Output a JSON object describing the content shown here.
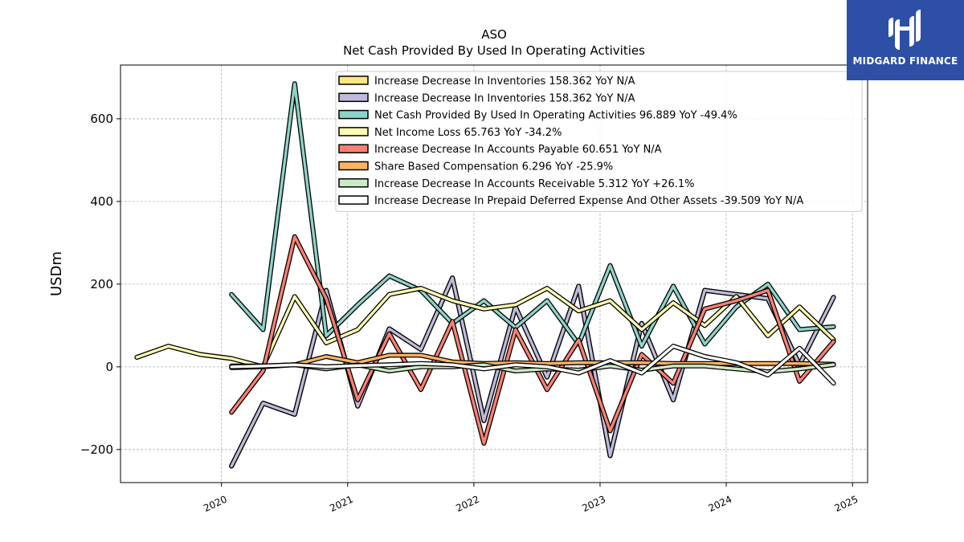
{
  "brand": {
    "name": "MIDGARD FINANCE",
    "bg_color": "#2d4fa6"
  },
  "chart_data": {
    "type": "line",
    "title": "ASO",
    "subtitle": "Net Cash Provided By Used In Operating Activities",
    "xlabel": "",
    "ylabel": "USDm",
    "xlim": [
      2019.2,
      2025.12
    ],
    "ylim": [
      -280,
      730
    ],
    "x_ticks": [
      2020,
      2021,
      2022,
      2023,
      2024,
      2025
    ],
    "x_tick_labels": [
      "2020",
      "2021",
      "2022",
      "2023",
      "2024",
      "2025"
    ],
    "y_ticks": [
      -200,
      0,
      200,
      400,
      600
    ],
    "y_tick_labels": [
      "−200",
      "0",
      "200",
      "400",
      "600"
    ],
    "grid": true,
    "legend_position": "top-right",
    "series": [
      {
        "name": "Increase Decrease In Inventories",
        "legend_label": "Increase Decrease In Inventories  158.362 YoY N/A",
        "color": "#ffe680",
        "x": [
          2020.08,
          2020.33,
          2020.58,
          2020.83,
          2021.08,
          2021.33,
          2021.58,
          2021.83,
          2022.08,
          2022.33,
          2022.58,
          2022.83,
          2023.08,
          2023.33,
          2023.58,
          2023.83,
          2024.08,
          2024.33,
          2024.58,
          2024.85
        ],
        "y": [
          -240,
          -88,
          -115,
          185,
          -95,
          92,
          42,
          215,
          -130,
          145,
          -25,
          195,
          -215,
          105,
          -80,
          185,
          175,
          165,
          5,
          168
        ]
      },
      {
        "name": "Increase Decrease In Inventories",
        "legend_label": "Increase Decrease In Inventories  158.362 YoY N/A",
        "color": "#bebada",
        "x": [
          2020.08,
          2020.33,
          2020.58,
          2020.83,
          2021.08,
          2021.33,
          2021.58,
          2021.83,
          2022.08,
          2022.33,
          2022.58,
          2022.83,
          2023.08,
          2023.33,
          2023.58,
          2023.83,
          2024.08,
          2024.33,
          2024.58,
          2024.85
        ],
        "y": [
          -240,
          -88,
          -115,
          185,
          -95,
          92,
          42,
          215,
          -130,
          145,
          -25,
          195,
          -215,
          105,
          -80,
          185,
          175,
          165,
          5,
          168
        ]
      },
      {
        "name": "Net Cash Provided By Used In Operating Activities",
        "legend_label": "Net Cash Provided By Used In Operating Activities  96.889 YoY -49.4%",
        "color": "#8dd3c7",
        "x": [
          2020.08,
          2020.33,
          2020.58,
          2020.83,
          2021.08,
          2021.33,
          2021.58,
          2021.83,
          2022.08,
          2022.33,
          2022.58,
          2022.83,
          2023.08,
          2023.33,
          2023.58,
          2023.83,
          2024.08,
          2024.33,
          2024.58,
          2024.85
        ],
        "y": [
          175,
          90,
          685,
          75,
          150,
          220,
          185,
          105,
          160,
          95,
          160,
          55,
          245,
          50,
          195,
          55,
          145,
          200,
          90,
          97
        ]
      },
      {
        "name": "Net Income Loss",
        "legend_label": "Net Income Loss  65.763 YoY -34.2%",
        "color": "#ffffb3",
        "x": [
          2019.33,
          2019.58,
          2019.83,
          2020.08,
          2020.33,
          2020.58,
          2020.83,
          2021.08,
          2021.33,
          2021.58,
          2021.83,
          2022.08,
          2022.33,
          2022.58,
          2022.83,
          2023.08,
          2023.33,
          2023.58,
          2023.83,
          2024.08,
          2024.33,
          2024.58,
          2024.85
        ],
        "y": [
          23,
          50,
          30,
          20,
          0,
          170,
          58,
          90,
          175,
          190,
          160,
          140,
          150,
          190,
          135,
          160,
          90,
          155,
          100,
          170,
          75,
          145,
          66
        ]
      },
      {
        "name": "Increase Decrease In Accounts Payable",
        "legend_label": "Increase Decrease In Accounts Payable  60.651 YoY N/A",
        "color": "#fb8072",
        "x": [
          2020.08,
          2020.33,
          2020.58,
          2020.83,
          2021.08,
          2021.33,
          2021.58,
          2021.83,
          2022.08,
          2022.33,
          2022.58,
          2022.83,
          2023.08,
          2023.33,
          2023.58,
          2023.83,
          2024.08,
          2024.33,
          2024.58,
          2024.85
        ],
        "y": [
          -110,
          -10,
          315,
          165,
          -80,
          80,
          -55,
          110,
          -185,
          90,
          -55,
          65,
          -155,
          30,
          -40,
          140,
          160,
          185,
          -35,
          61
        ]
      },
      {
        "name": "Share Based Compensation",
        "legend_label": "Share Based Compensation  6.296 YoY -25.9%",
        "color": "#fdb462",
        "x": [
          2020.08,
          2020.33,
          2020.58,
          2020.83,
          2021.08,
          2021.33,
          2021.58,
          2021.83,
          2022.08,
          2022.33,
          2022.58,
          2022.83,
          2023.08,
          2023.33,
          2023.58,
          2023.83,
          2024.08,
          2024.33,
          2024.58,
          2024.85
        ],
        "y": [
          2,
          2,
          5,
          25,
          10,
          28,
          28,
          12,
          8,
          10,
          8,
          10,
          10,
          10,
          8,
          8,
          8,
          8,
          8,
          6.3
        ]
      },
      {
        "name": "Increase Decrease In Accounts Receivable",
        "legend_label": "Increase Decrease In Accounts Receivable  5.312 YoY +26.1%",
        "color": "#ccebc5",
        "x": [
          2020.08,
          2020.33,
          2020.58,
          2020.83,
          2021.08,
          2021.33,
          2021.58,
          2021.83,
          2022.08,
          2022.33,
          2022.58,
          2022.83,
          2023.08,
          2023.33,
          2023.58,
          2023.83,
          2024.08,
          2024.33,
          2024.58,
          2024.85
        ],
        "y": [
          -2,
          0,
          5,
          -5,
          5,
          -10,
          0,
          0,
          5,
          -10,
          -5,
          -8,
          2,
          -8,
          2,
          2,
          -5,
          -12,
          -5,
          5.3
        ]
      },
      {
        "name": "Increase Decrease In Prepaid Deferred Expense And Other Assets",
        "legend_label": "Increase Decrease In Prepaid Deferred Expense And Other Assets  -39.509 YoY N/A",
        "color": "#ffffff",
        "x": [
          2020.08,
          2020.33,
          2020.58,
          2020.83,
          2021.08,
          2021.33,
          2021.58,
          2021.83,
          2022.08,
          2022.33,
          2022.58,
          2022.83,
          2023.08,
          2023.33,
          2023.58,
          2023.83,
          2024.08,
          2024.33,
          2024.58,
          2024.85
        ],
        "y": [
          0,
          2,
          5,
          0,
          3,
          5,
          8,
          5,
          -5,
          5,
          0,
          -15,
          15,
          -15,
          50,
          25,
          10,
          -20,
          45,
          -39.5
        ]
      }
    ]
  }
}
